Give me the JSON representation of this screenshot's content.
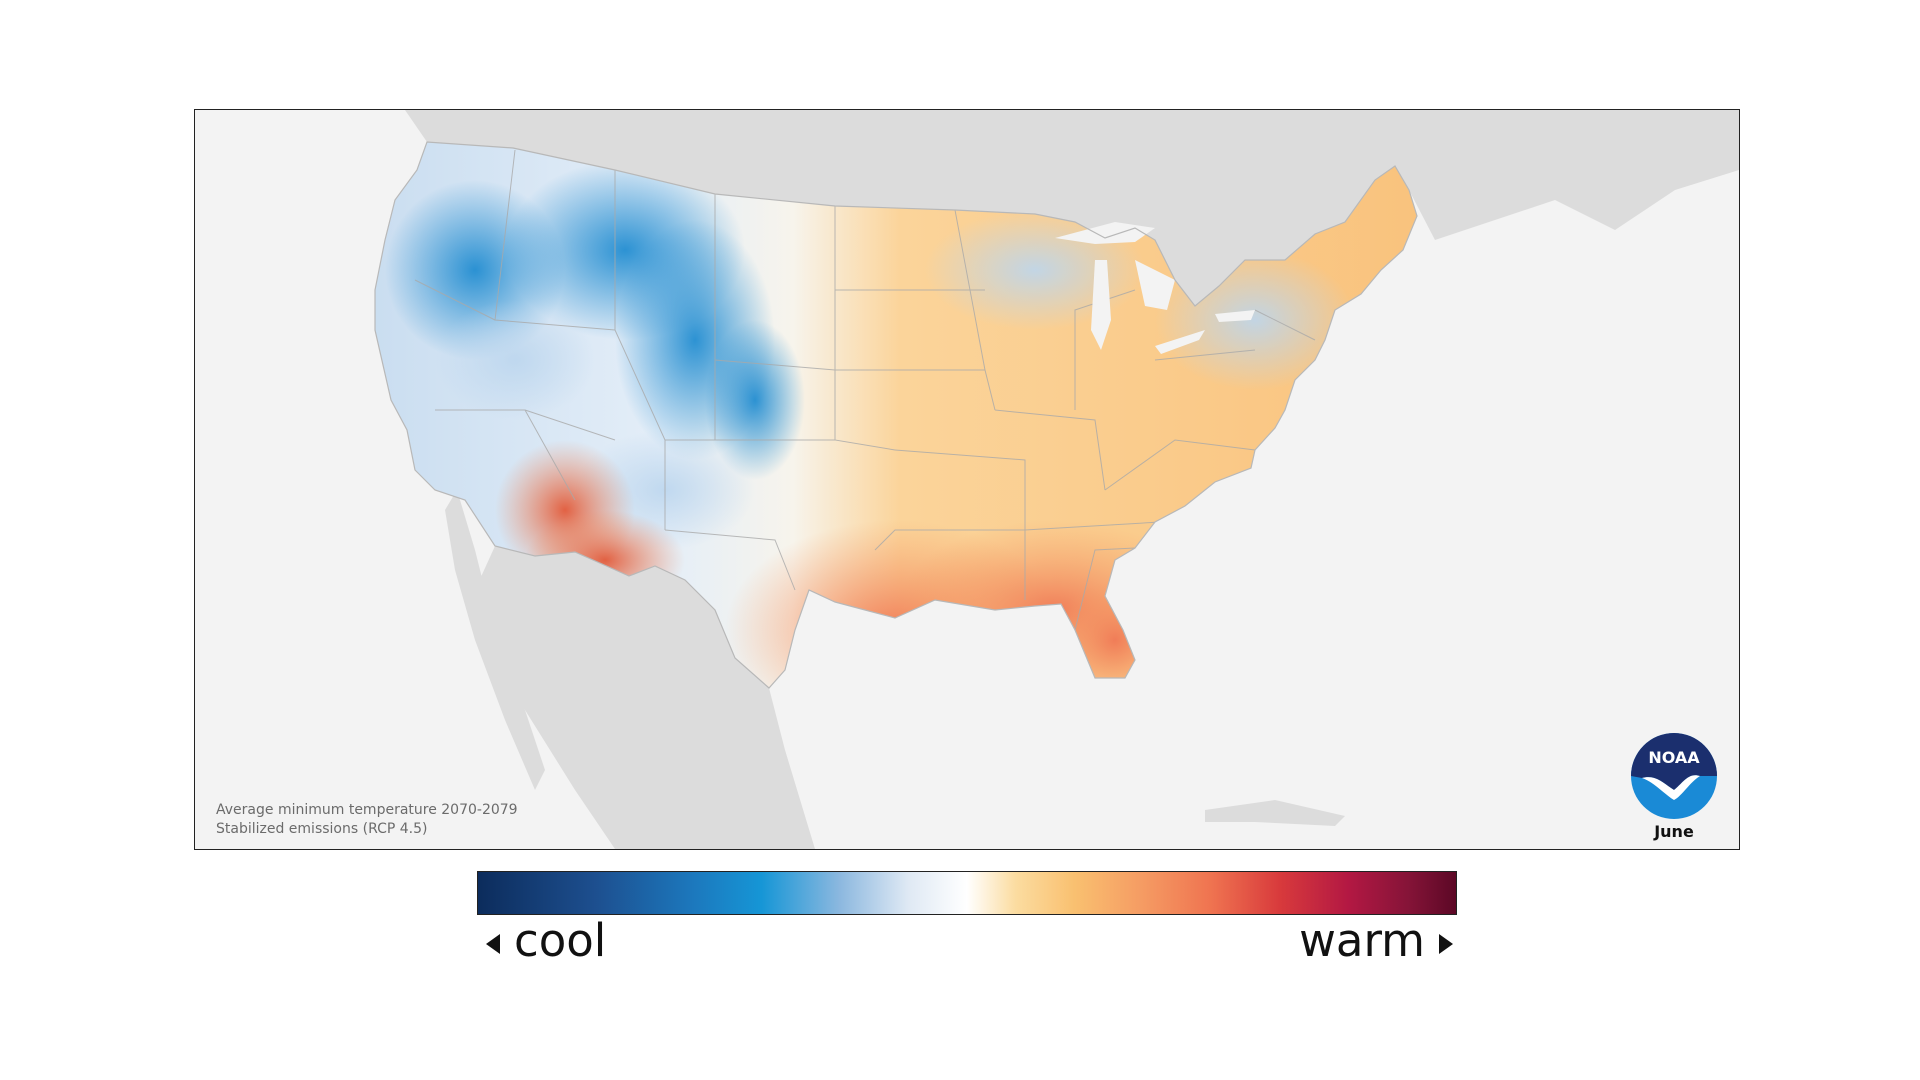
{
  "map": {
    "caption_line1": "Average minimum temperature 2070-2079",
    "caption_line2": "Stabilized emissions (RCP 4.5)",
    "month": "June",
    "logo_text": "NOAA"
  },
  "legend": {
    "low_label": "cool",
    "high_label": "warm"
  },
  "colors": {
    "cool_deep": "#0c2c5c",
    "cool": "#1696d6",
    "neutral": "#ffffff",
    "warm": "#f9c070",
    "hot": "#ef7350",
    "hottest": "#5c0826",
    "land_outside": "#dcdcdc",
    "ocean": "#f3f3f3",
    "noaa_blue": "#1a8ad6",
    "noaa_navy": "#1b2f6e"
  }
}
